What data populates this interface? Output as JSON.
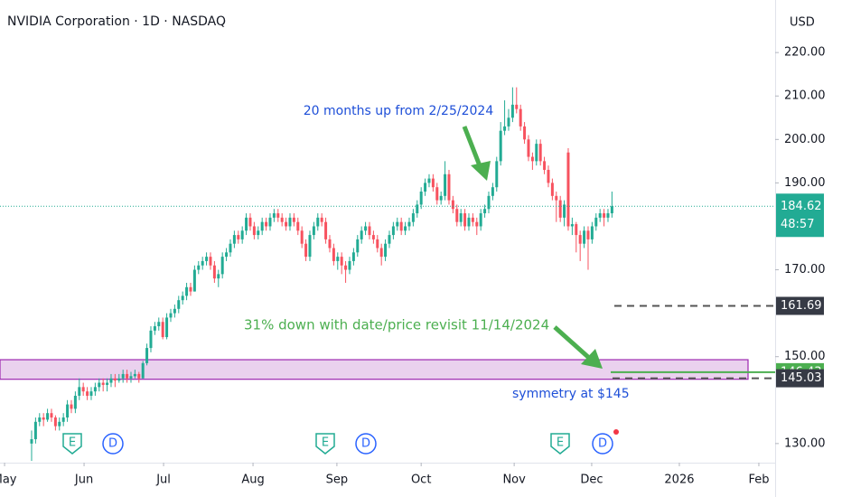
{
  "chart_data": {
    "type": "candlestick",
    "title": "NVIDIA Corporation · 1D · NASDAQ",
    "currency": "USD",
    "up_color": "#22ab94",
    "down_color": "#f7525f",
    "ylim": [
      125.6,
      232.1
    ],
    "yticks": [
      {
        "value": 220,
        "label": "220.00"
      },
      {
        "value": 210,
        "label": "210.00"
      },
      {
        "value": 200,
        "label": "200.00"
      },
      {
        "value": 190,
        "label": "190.00"
      },
      {
        "value": 170,
        "label": "170.00"
      },
      {
        "value": 150,
        "label": "150.00"
      },
      {
        "value": 130,
        "label": "130.00"
      }
    ],
    "xlim": [
      -7.95,
      187.05
    ],
    "xticks": [
      {
        "value": -6.8,
        "label": "May"
      },
      {
        "value": 13.2,
        "label": "Jun"
      },
      {
        "value": 33.2,
        "label": "Jul"
      },
      {
        "value": 55.7,
        "label": "Aug"
      },
      {
        "value": 76.8,
        "label": "Sep"
      },
      {
        "value": 98,
        "label": "Oct"
      },
      {
        "value": 121.4,
        "label": "Nov"
      },
      {
        "value": 140.9,
        "label": "Dec"
      },
      {
        "value": 162.95,
        "label": "2026"
      },
      {
        "value": 182.95,
        "label": "Feb"
      }
    ],
    "ohlc": [
      [
        130,
        133,
        126,
        131
      ],
      [
        131,
        136,
        130,
        135
      ],
      [
        135,
        137,
        134,
        136
      ],
      [
        136,
        137,
        134,
        135.5
      ],
      [
        135.5,
        138,
        135,
        137
      ],
      [
        137,
        138,
        135,
        136
      ],
      [
        136,
        136.5,
        133,
        134
      ],
      [
        134,
        136,
        133,
        135
      ],
      [
        135,
        137,
        134,
        136
      ],
      [
        136,
        140,
        135,
        139
      ],
      [
        139,
        140,
        137,
        138
      ],
      [
        138,
        142,
        137,
        141
      ],
      [
        141,
        145,
        140,
        143
      ],
      [
        143,
        144,
        141,
        142
      ],
      [
        142,
        143,
        140,
        141
      ],
      [
        141,
        143,
        140,
        142
      ],
      [
        142,
        144,
        141,
        143
      ],
      [
        143,
        145,
        142,
        144
      ],
      [
        144,
        145,
        142,
        143.5
      ],
      [
        143.5,
        145,
        142,
        144
      ],
      [
        144,
        146,
        143,
        145
      ],
      [
        145,
        146,
        143,
        144.5
      ],
      [
        144.5,
        146,
        144,
        145
      ],
      [
        145,
        147,
        144,
        146
      ],
      [
        146,
        147,
        144,
        145
      ],
      [
        145,
        146.5,
        144,
        145.5
      ],
      [
        145.5,
        147,
        145,
        146
      ],
      [
        146,
        146.5,
        144,
        145
      ],
      [
        145,
        149,
        145,
        148.5
      ],
      [
        148.5,
        153,
        148,
        152
      ],
      [
        152,
        157,
        151,
        156
      ],
      [
        156,
        158,
        155,
        157
      ],
      [
        157,
        159,
        156,
        158
      ],
      [
        158,
        159,
        154,
        154.5
      ],
      [
        154.5,
        160,
        154,
        159
      ],
      [
        159,
        161,
        158,
        160
      ],
      [
        160,
        162,
        159,
        161
      ],
      [
        161,
        164,
        160,
        163
      ],
      [
        163,
        165,
        162,
        164
      ],
      [
        164,
        167,
        163,
        166
      ],
      [
        166,
        167,
        164,
        165
      ],
      [
        165,
        171,
        165,
        170
      ],
      [
        170,
        172,
        169,
        171
      ],
      [
        171,
        173,
        170,
        172
      ],
      [
        172,
        174,
        171,
        173
      ],
      [
        173,
        174,
        170,
        171
      ],
      [
        171,
        172,
        167,
        168
      ],
      [
        168,
        170,
        166,
        169
      ],
      [
        169,
        174,
        168,
        173
      ],
      [
        173,
        175,
        172,
        174
      ],
      [
        174,
        177,
        173,
        176
      ],
      [
        176,
        179,
        175,
        178
      ],
      [
        178,
        179,
        176,
        177
      ],
      [
        177,
        180,
        176,
        179
      ],
      [
        179,
        183,
        178,
        182
      ],
      [
        182,
        183,
        179,
        180
      ],
      [
        180,
        181,
        177,
        178
      ],
      [
        178,
        180,
        177,
        179
      ],
      [
        179,
        182,
        178,
        181
      ],
      [
        181,
        182,
        179,
        180
      ],
      [
        180,
        183,
        179,
        182
      ],
      [
        182,
        184,
        181,
        183
      ],
      [
        183,
        184,
        181,
        182
      ],
      [
        182,
        183,
        180,
        181
      ],
      [
        181,
        182,
        179,
        180
      ],
      [
        180,
        183,
        179,
        182
      ],
      [
        182,
        183,
        180,
        181
      ],
      [
        181,
        182,
        178,
        179
      ],
      [
        179,
        180,
        175,
        176
      ],
      [
        176,
        177,
        172,
        173
      ],
      [
        173,
        179,
        172,
        178
      ],
      [
        178,
        181,
        177,
        180
      ],
      [
        180,
        183,
        179,
        182
      ],
      [
        182,
        183,
        180,
        181
      ],
      [
        181,
        182,
        176,
        177
      ],
      [
        177,
        178,
        174,
        175
      ],
      [
        175,
        176,
        171,
        172
      ],
      [
        172,
        174,
        170,
        173
      ],
      [
        173,
        174,
        169,
        171
      ],
      [
        171,
        172,
        167,
        170
      ],
      [
        170,
        173,
        169,
        172
      ],
      [
        172,
        175,
        171,
        174
      ],
      [
        174,
        178,
        173,
        177
      ],
      [
        177,
        180,
        176,
        179
      ],
      [
        179,
        181,
        178,
        180
      ],
      [
        180,
        181,
        177,
        178
      ],
      [
        178,
        179,
        176,
        177
      ],
      [
        177,
        178,
        174,
        175
      ],
      [
        175,
        176,
        171,
        173
      ],
      [
        173,
        177,
        172,
        176
      ],
      [
        176,
        179,
        175,
        178
      ],
      [
        178,
        181,
        177,
        180
      ],
      [
        180,
        182,
        179,
        181
      ],
      [
        181,
        182,
        178,
        179
      ],
      [
        179,
        181,
        178,
        180
      ],
      [
        180,
        182,
        179,
        181
      ],
      [
        181,
        184,
        180,
        183
      ],
      [
        183,
        186,
        182,
        185
      ],
      [
        185,
        189,
        184,
        188
      ],
      [
        188,
        191,
        187,
        190
      ],
      [
        190,
        192,
        189,
        191
      ],
      [
        191,
        192,
        188,
        189
      ],
      [
        189,
        190,
        185,
        186
      ],
      [
        186,
        188,
        185,
        187
      ],
      [
        187,
        195,
        186,
        192
      ],
      [
        192,
        193,
        185,
        186
      ],
      [
        186,
        187,
        183,
        184
      ],
      [
        184,
        185,
        180,
        181
      ],
      [
        181,
        184,
        180,
        183
      ],
      [
        183,
        184,
        179,
        180
      ],
      [
        180,
        183,
        179,
        182
      ],
      [
        182,
        183,
        180,
        181
      ],
      [
        181,
        182,
        178,
        180
      ],
      [
        180,
        184,
        179,
        183
      ],
      [
        183,
        185,
        182,
        184
      ],
      [
        184,
        188,
        183,
        187
      ],
      [
        187,
        190,
        186,
        189
      ],
      [
        189,
        196,
        188,
        195
      ],
      [
        195,
        204,
        194,
        202
      ],
      [
        202,
        209,
        201,
        203
      ],
      [
        203,
        207,
        202,
        205
      ],
      [
        205,
        212,
        204,
        208
      ],
      [
        208,
        212,
        206,
        207
      ],
      [
        207,
        208,
        202,
        203
      ],
      [
        203,
        204,
        199,
        200
      ],
      [
        200,
        201,
        195,
        196
      ],
      [
        196,
        197,
        193,
        195
      ],
      [
        195,
        200,
        194,
        199
      ],
      [
        199,
        200,
        194,
        195
      ],
      [
        195,
        196,
        192,
        193
      ],
      [
        193,
        194,
        189,
        190
      ],
      [
        190,
        191,
        186,
        187
      ],
      [
        187,
        188,
        181,
        186
      ],
      [
        186,
        187,
        181,
        182
      ],
      [
        182,
        186,
        180,
        185
      ],
      [
        197,
        198,
        179,
        180
      ],
      [
        180,
        182,
        178,
        180.5
      ],
      [
        180.5,
        181,
        174,
        178
      ],
      [
        178,
        179,
        172,
        176
      ],
      [
        176,
        180,
        175,
        179
      ],
      [
        179,
        180,
        170,
        177
      ],
      [
        177,
        181,
        176,
        180
      ],
      [
        180,
        183,
        179,
        182
      ],
      [
        182,
        184,
        181,
        183
      ],
      [
        183,
        184,
        180,
        182
      ],
      [
        182,
        184,
        181,
        183
      ],
      [
        183,
        188,
        182,
        184.62
      ]
    ],
    "current_price": 184.62,
    "countdown": "48:57",
    "zone": {
      "from": 144.8,
      "to": 149.3,
      "color": "#e1bee7"
    },
    "levels": [
      {
        "value": 161.69,
        "style": "dashed",
        "color": "#555555"
      },
      {
        "value": 146.43,
        "style": "solid",
        "color": "#4caf50"
      },
      {
        "value": 145.03,
        "style": "dashed",
        "color": "#555555"
      }
    ],
    "annotations": [
      "20 months up from 2/25/2024",
      "31% down with date/price revisit 11/14/2024",
      "symmetry at $145"
    ],
    "events": [
      "E",
      "D",
      "E",
      "D",
      "E",
      "D"
    ]
  }
}
